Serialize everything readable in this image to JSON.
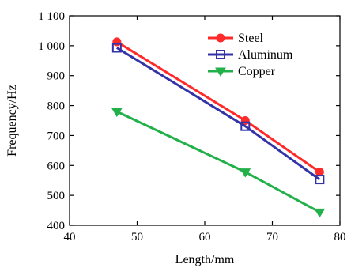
{
  "chart_data": {
    "type": "line",
    "title": "",
    "xlabel": "Length/mm",
    "ylabel": "Frequency/Hz",
    "xlim": [
      40,
      80
    ],
    "ylim": [
      400,
      1100
    ],
    "xticks": [
      40,
      50,
      60,
      70,
      80
    ],
    "yticks": [
      400,
      500,
      600,
      700,
      800,
      900,
      1000,
      1100
    ],
    "xtick_labels": [
      "40",
      "50",
      "60",
      "70",
      "80"
    ],
    "ytick_labels": [
      "400",
      "500",
      "600",
      "700",
      "800",
      "900",
      "1 000",
      "1 100"
    ],
    "grid": false,
    "legend_position": "top-right",
    "series": [
      {
        "name": "Steel",
        "color": "#ff2a2a",
        "marker": "circle",
        "x": [
          47,
          66,
          77
        ],
        "y": [
          1013,
          750,
          578
        ]
      },
      {
        "name": "Aluminum",
        "color": "#3333a8",
        "marker": "square",
        "x": [
          47,
          66,
          77
        ],
        "y": [
          993,
          731,
          553
        ]
      },
      {
        "name": "Copper",
        "color": "#22b04a",
        "marker": "triangle-down",
        "x": [
          47,
          66,
          77
        ],
        "y": [
          780,
          578,
          444
        ]
      }
    ]
  }
}
